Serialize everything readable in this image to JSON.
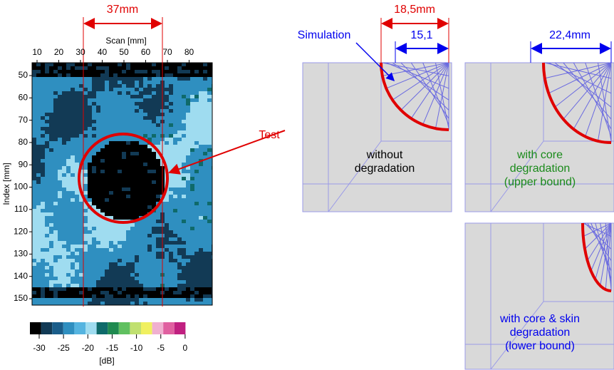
{
  "cscan": {
    "x_axis_label": "Scan [mm]",
    "y_axis_label": "Index [mm]",
    "xticks": [
      10,
      20,
      30,
      40,
      50,
      60,
      70,
      80
    ],
    "yticks": [
      50,
      60,
      70,
      80,
      90,
      100,
      110,
      120,
      130,
      140,
      150
    ],
    "colorbar_ticks": [
      -30,
      -25,
      -20,
      -15,
      -10,
      -5,
      0
    ],
    "colorbar_unit": "[dB]"
  },
  "annotations": {
    "test_width": "37mm",
    "test": "Test",
    "simulation": "Simulation",
    "sim_width": "18,5mm",
    "sim_inner": "15,1",
    "upper_width": "22,4mm"
  },
  "panels": [
    {
      "lines": [
        "without",
        "degradation"
      ]
    },
    {
      "lines": [
        "with core",
        "degradation",
        "(upper bound)"
      ]
    },
    {
      "lines": [
        "with core & skin",
        "degradation",
        "(lower bound)"
      ]
    }
  ]
}
